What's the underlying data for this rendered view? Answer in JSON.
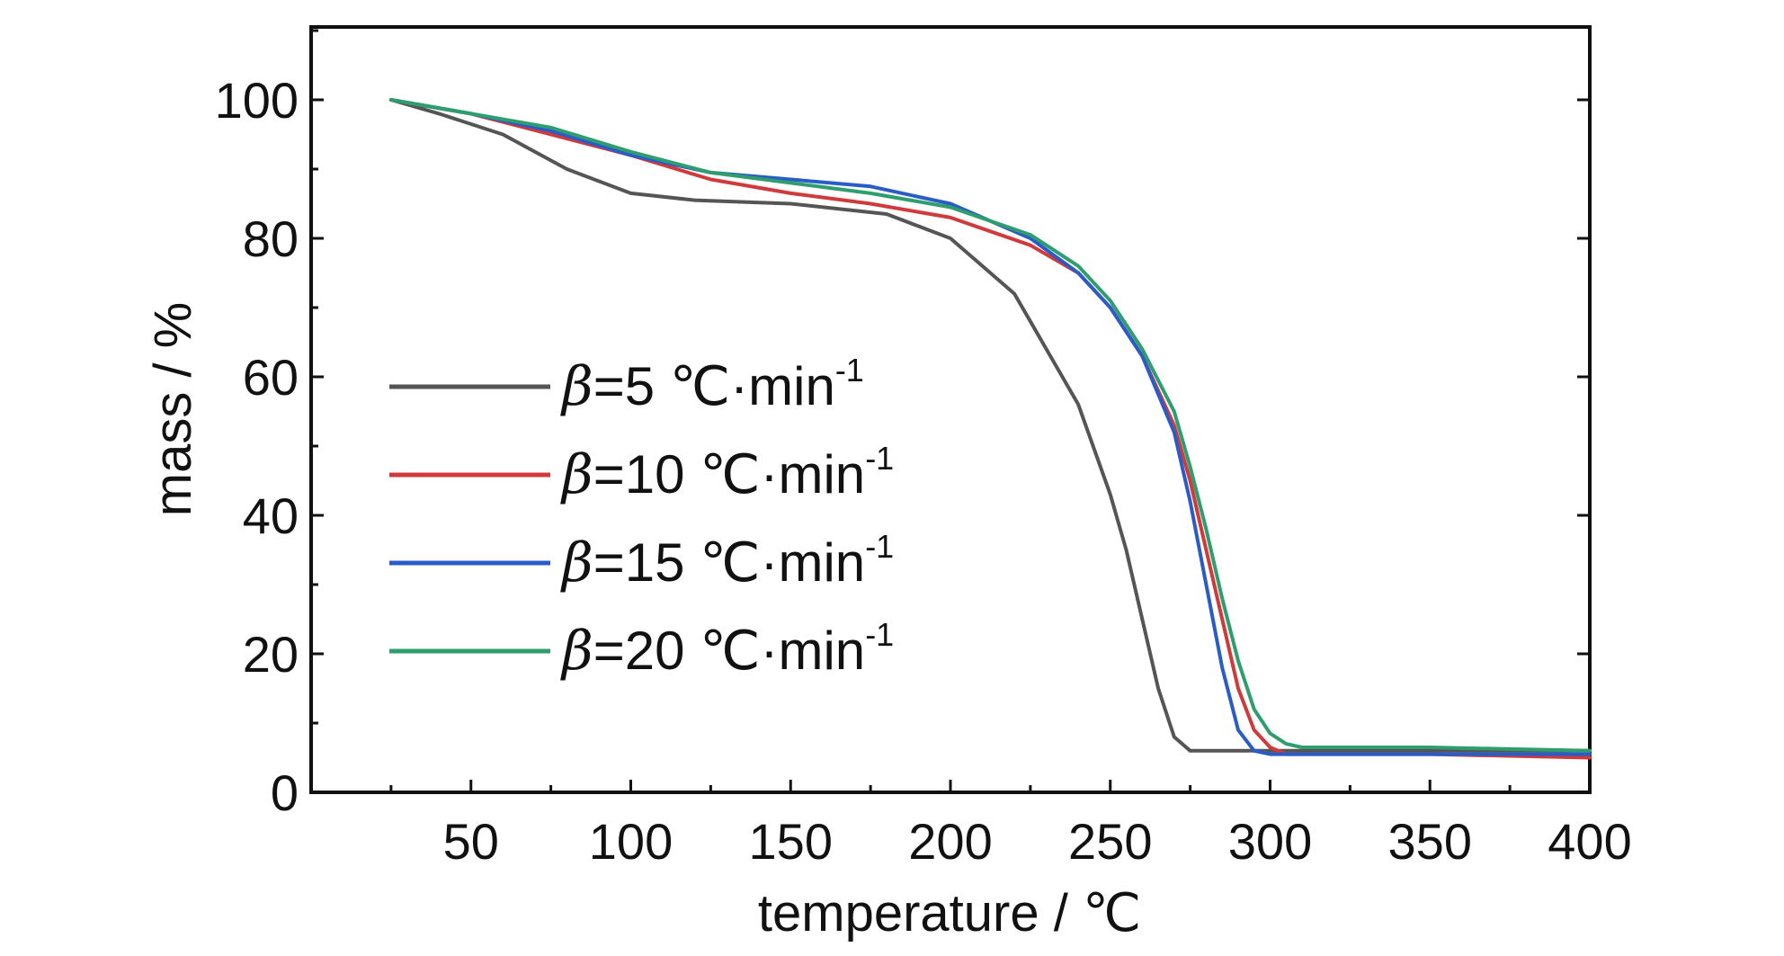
{
  "chart_data": {
    "type": "line",
    "xlabel": "temperature / ℃",
    "ylabel": "mass / %",
    "xlim": [
      0,
      400
    ],
    "ylim": [
      0,
      110
    ],
    "x_ticks": [
      50,
      100,
      150,
      200,
      250,
      300,
      350,
      400
    ],
    "y_ticks": [
      0,
      20,
      40,
      60,
      80,
      100
    ],
    "grid": false,
    "legend_position": "center-left",
    "series": [
      {
        "name": "β=5 ℃·min-1",
        "legend_prefix": "β",
        "legend_main": "=5 ℃·min",
        "legend_sup": "-1",
        "color": "#555555",
        "x": [
          25,
          40,
          60,
          80,
          100,
          120,
          150,
          180,
          200,
          220,
          240,
          250,
          255,
          260,
          265,
          270,
          275,
          280,
          300,
          350,
          400
        ],
        "y": [
          100,
          98,
          95,
          90,
          86.5,
          85.5,
          85,
          83.5,
          80,
          72,
          56,
          43,
          35,
          25,
          15,
          8,
          6,
          6,
          6,
          6,
          6
        ]
      },
      {
        "name": "β=10 ℃·min-1",
        "legend_prefix": "β",
        "legend_main": "=10 ℃·min",
        "legend_sup": "-1",
        "color": "#d03a3a",
        "x": [
          25,
          50,
          75,
          100,
          125,
          150,
          175,
          200,
          225,
          240,
          250,
          260,
          270,
          275,
          280,
          285,
          290,
          295,
          300,
          305,
          320,
          350,
          400
        ],
        "y": [
          100,
          98,
          95,
          92,
          88.5,
          86.5,
          85,
          83,
          79,
          75,
          70,
          63,
          53,
          45,
          35,
          25,
          15,
          9,
          6.5,
          5.5,
          5.5,
          5.5,
          5
        ]
      },
      {
        "name": "β=15 ℃·min-1",
        "legend_prefix": "β",
        "legend_main": "=15 ℃·min",
        "legend_sup": "-1",
        "color": "#2a5cc8",
        "x": [
          25,
          50,
          75,
          100,
          125,
          150,
          175,
          200,
          225,
          240,
          250,
          260,
          270,
          275,
          280,
          285,
          290,
          295,
          300,
          350,
          400
        ],
        "y": [
          100,
          98,
          95.5,
          92,
          89.5,
          88.5,
          87.5,
          85,
          80,
          75,
          70,
          63,
          52,
          42,
          30,
          18,
          9,
          6,
          5.5,
          5.5,
          5.5
        ]
      },
      {
        "name": "β=20 ℃·min-1",
        "legend_prefix": "β",
        "legend_main": "=20 ℃·min",
        "legend_sup": "-1",
        "color": "#2f9e6e",
        "x": [
          25,
          50,
          75,
          100,
          125,
          150,
          175,
          200,
          225,
          240,
          250,
          260,
          270,
          275,
          280,
          285,
          290,
          295,
          300,
          305,
          310,
          350,
          400
        ],
        "y": [
          100,
          98,
          96,
          92.5,
          89.5,
          88,
          86.5,
          84.5,
          80.5,
          76,
          71,
          64,
          55,
          47,
          38,
          28,
          19,
          12,
          8.5,
          7,
          6.5,
          6.5,
          6
        ]
      }
    ]
  }
}
